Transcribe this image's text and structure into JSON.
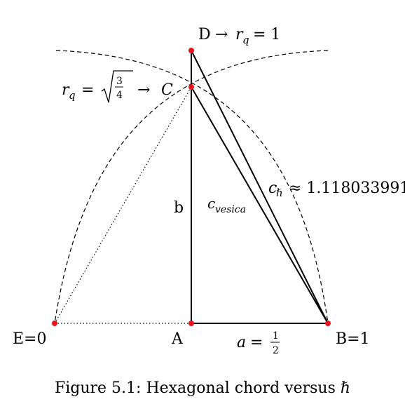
{
  "colors": {
    "point": "#e8141b",
    "line": "#000000",
    "background": "#ffffff"
  },
  "labels": {
    "d_name": "D",
    "d_arrow": "→",
    "d_rq": "r",
    "d_sub": "q",
    "d_value": "= 1",
    "c_rq": "r",
    "c_sub": "q",
    "c_eq": "=",
    "c_frac_num": "3",
    "c_frac_den": "4",
    "c_arrow": "→",
    "c_name": "C",
    "c_hbar": "c",
    "c_hbar_sub": "ℏ",
    "c_hbar_value": "≈ 1.118033991",
    "c_vesica": "c",
    "c_vesica_sub": "vesica",
    "b": "b",
    "e": "E=0",
    "a_point": "A",
    "b_point": "B=1",
    "a_side": "a",
    "a_eq": "=",
    "a_frac_num": "1",
    "a_frac_den": "2"
  },
  "caption": "Figure 5.1: Hexagonal chord versus ℏ"
}
